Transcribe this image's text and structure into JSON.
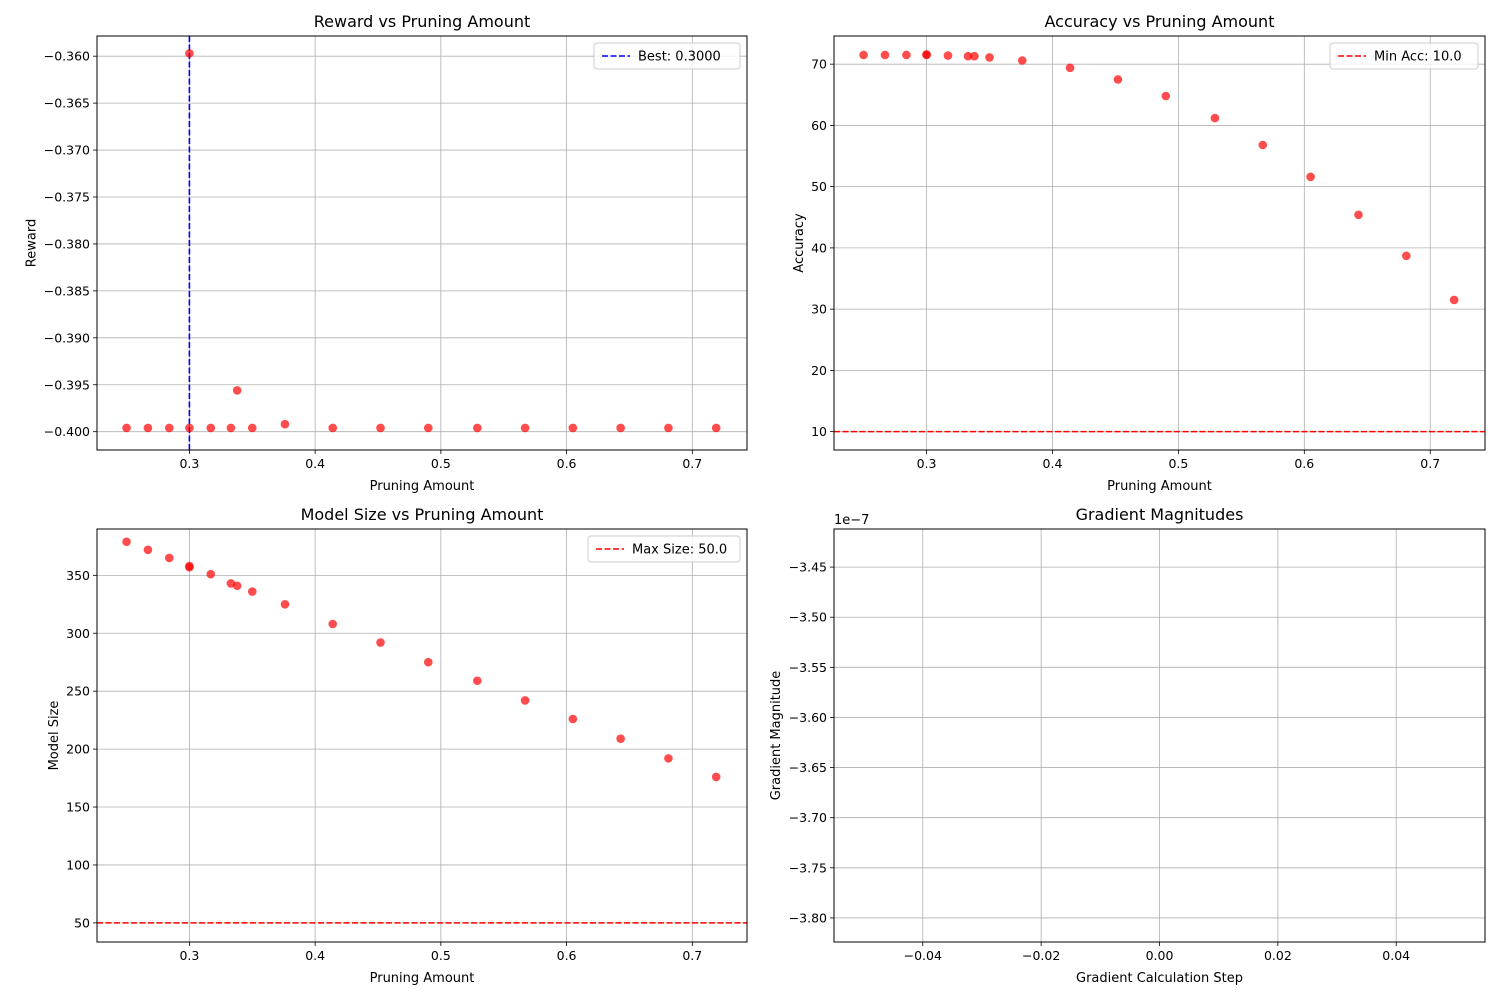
{
  "colors": {
    "point": "#ff0000",
    "best_line": "#0000ff",
    "threshold_line": "#ff0000"
  },
  "chart_data": [
    {
      "type": "scatter",
      "title": "Reward vs Pruning Amount",
      "xlabel": "Pruning Amount",
      "ylabel": "Reward",
      "xlim": [
        0.2265,
        0.7435
      ],
      "ylim": [
        -0.40195,
        -0.35785
      ],
      "xticks": [
        0.3,
        0.4,
        0.5,
        0.6,
        0.7
      ],
      "xtick_labels": [
        "0.3",
        "0.4",
        "0.5",
        "0.6",
        "0.7"
      ],
      "yticks": [
        -0.36,
        -0.365,
        -0.37,
        -0.375,
        -0.38,
        -0.385,
        -0.39,
        -0.395,
        -0.4
      ],
      "ytick_labels": [
        "−0.360",
        "−0.365",
        "−0.370",
        "−0.375",
        "−0.380",
        "−0.385",
        "−0.390",
        "−0.395",
        "−0.400"
      ],
      "grid": true,
      "points": [
        {
          "x": 0.25,
          "y": -0.3996
        },
        {
          "x": 0.267,
          "y": -0.3996
        },
        {
          "x": 0.284,
          "y": -0.3996
        },
        {
          "x": 0.3,
          "y": -0.3996
        },
        {
          "x": 0.3,
          "y": -0.3597
        },
        {
          "x": 0.317,
          "y": -0.3996
        },
        {
          "x": 0.333,
          "y": -0.3996
        },
        {
          "x": 0.338,
          "y": -0.3956
        },
        {
          "x": 0.35,
          "y": -0.3996
        },
        {
          "x": 0.376,
          "y": -0.3992
        },
        {
          "x": 0.414,
          "y": -0.3996
        },
        {
          "x": 0.452,
          "y": -0.3996
        },
        {
          "x": 0.49,
          "y": -0.3996
        },
        {
          "x": 0.529,
          "y": -0.3996
        },
        {
          "x": 0.567,
          "y": -0.3996
        },
        {
          "x": 0.605,
          "y": -0.3996
        },
        {
          "x": 0.643,
          "y": -0.3996
        },
        {
          "x": 0.681,
          "y": -0.3996
        },
        {
          "x": 0.719,
          "y": -0.3996
        }
      ],
      "reference_line": {
        "orientation": "vertical",
        "value": 0.3,
        "color": "#0000ff",
        "label": "Best: 0.3000"
      },
      "legend": {
        "position": "top-right",
        "entries": [
          "Best: 0.3000"
        ]
      }
    },
    {
      "type": "scatter",
      "title": "Accuracy vs Pruning Amount",
      "xlabel": "Pruning Amount",
      "ylabel": "Accuracy",
      "xlim": [
        0.2265,
        0.7435
      ],
      "ylim": [
        7.0,
        74.6
      ],
      "xticks": [
        0.3,
        0.4,
        0.5,
        0.6,
        0.7
      ],
      "xtick_labels": [
        "0.3",
        "0.4",
        "0.5",
        "0.6",
        "0.7"
      ],
      "yticks": [
        10,
        20,
        30,
        40,
        50,
        60,
        70
      ],
      "ytick_labels": [
        "10",
        "20",
        "30",
        "40",
        "50",
        "60",
        "70"
      ],
      "grid": true,
      "points": [
        {
          "x": 0.25,
          "y": 71.5
        },
        {
          "x": 0.267,
          "y": 71.5
        },
        {
          "x": 0.284,
          "y": 71.5
        },
        {
          "x": 0.3,
          "y": 71.5
        },
        {
          "x": 0.3,
          "y": 71.6
        },
        {
          "x": 0.317,
          "y": 71.4
        },
        {
          "x": 0.333,
          "y": 71.3
        },
        {
          "x": 0.338,
          "y": 71.3
        },
        {
          "x": 0.35,
          "y": 71.1
        },
        {
          "x": 0.376,
          "y": 70.6
        },
        {
          "x": 0.414,
          "y": 69.4
        },
        {
          "x": 0.452,
          "y": 67.5
        },
        {
          "x": 0.49,
          "y": 64.8
        },
        {
          "x": 0.529,
          "y": 61.2
        },
        {
          "x": 0.567,
          "y": 56.8
        },
        {
          "x": 0.605,
          "y": 51.6
        },
        {
          "x": 0.643,
          "y": 45.4
        },
        {
          "x": 0.681,
          "y": 38.7
        },
        {
          "x": 0.719,
          "y": 31.5
        }
      ],
      "reference_line": {
        "orientation": "horizontal",
        "value": 10.0,
        "color": "#ff0000",
        "label": "Min Acc: 10.0"
      },
      "legend": {
        "position": "top-right",
        "entries": [
          "Min Acc: 10.0"
        ]
      }
    },
    {
      "type": "scatter",
      "title": "Model Size vs Pruning Amount",
      "xlabel": "Pruning Amount",
      "ylabel": "Model Size",
      "xlim": [
        0.2265,
        0.7435
      ],
      "ylim": [
        33.5,
        390.0
      ],
      "xticks": [
        0.3,
        0.4,
        0.5,
        0.6,
        0.7
      ],
      "xtick_labels": [
        "0.3",
        "0.4",
        "0.5",
        "0.6",
        "0.7"
      ],
      "yticks": [
        50,
        100,
        150,
        200,
        250,
        300,
        350
      ],
      "ytick_labels": [
        "50",
        "100",
        "150",
        "200",
        "250",
        "300",
        "350"
      ],
      "grid": true,
      "points": [
        {
          "x": 0.25,
          "y": 379
        },
        {
          "x": 0.267,
          "y": 372
        },
        {
          "x": 0.284,
          "y": 365
        },
        {
          "x": 0.3,
          "y": 358
        },
        {
          "x": 0.3,
          "y": 357
        },
        {
          "x": 0.317,
          "y": 351
        },
        {
          "x": 0.333,
          "y": 343
        },
        {
          "x": 0.338,
          "y": 341
        },
        {
          "x": 0.35,
          "y": 336
        },
        {
          "x": 0.376,
          "y": 325
        },
        {
          "x": 0.414,
          "y": 308
        },
        {
          "x": 0.452,
          "y": 292
        },
        {
          "x": 0.49,
          "y": 275
        },
        {
          "x": 0.529,
          "y": 259
        },
        {
          "x": 0.567,
          "y": 242
        },
        {
          "x": 0.605,
          "y": 226
        },
        {
          "x": 0.643,
          "y": 209
        },
        {
          "x": 0.681,
          "y": 192
        },
        {
          "x": 0.719,
          "y": 176
        }
      ],
      "reference_line": {
        "orientation": "horizontal",
        "value": 50.0,
        "color": "#ff0000",
        "label": "Max Size: 50.0"
      },
      "legend": {
        "position": "top-right",
        "entries": [
          "Max Size: 50.0"
        ]
      }
    },
    {
      "type": "line",
      "title": "Gradient Magnitudes",
      "xlabel": "Gradient Calculation Step",
      "ylabel": "Gradient Magnitude",
      "xlim": [
        -0.055,
        0.055
      ],
      "ylim": [
        -3.824,
        -3.412
      ],
      "y_offset_label": "1e−7",
      "xticks": [
        -0.04,
        -0.02,
        0.0,
        0.02,
        0.04
      ],
      "xtick_labels": [
        "−0.04",
        "−0.02",
        "0.00",
        "0.02",
        "0.04"
      ],
      "yticks": [
        -3.45,
        -3.5,
        -3.55,
        -3.6,
        -3.65,
        -3.7,
        -3.75,
        -3.8
      ],
      "ytick_labels": [
        "−3.45",
        "−3.50",
        "−3.55",
        "−3.60",
        "−3.65",
        "−3.70",
        "−3.75",
        "−3.80"
      ],
      "grid": true,
      "points": []
    }
  ]
}
